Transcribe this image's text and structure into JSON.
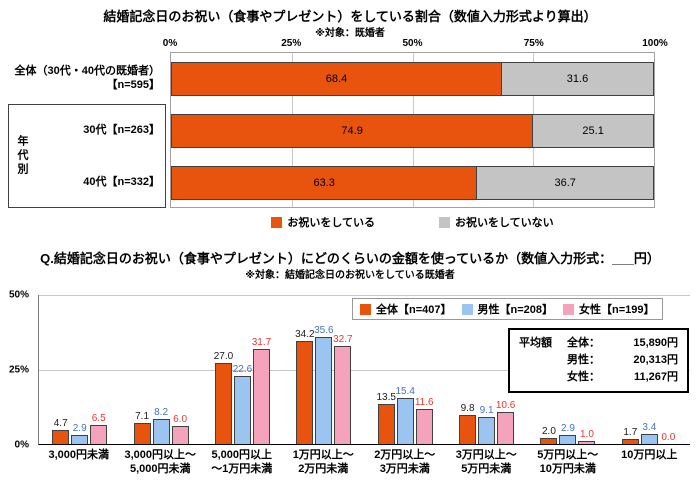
{
  "chart1": {
    "type": "bar",
    "title": "結婚記念日のお祝い（食事やプレゼント）をしている割合（数値入力形式より算出）",
    "subtitle": "※対象：既婚者",
    "x_ticks": [
      "0%",
      "25%",
      "50%",
      "75%",
      "100%"
    ],
    "xlim": [
      0,
      100
    ],
    "group_label": "年代別",
    "rows": [
      {
        "label_lines": [
          "全体（30代・40代の既婚者）",
          "【n=595】"
        ],
        "yes": "68.4",
        "no": "31.6"
      },
      {
        "label_lines": [
          "30代【n=263】"
        ],
        "yes": "74.9",
        "no": "25.1"
      },
      {
        "label_lines": [
          "40代【n=332】"
        ],
        "yes": "63.3",
        "no": "36.7"
      }
    ],
    "legend": [
      {
        "label": "お祝いをしている",
        "color": "#E8540E"
      },
      {
        "label": "お祝いをしていない",
        "color": "#C4C4C4"
      }
    ]
  },
  "chart2": {
    "type": "bar",
    "title": "Q.結婚記念日のお祝い（食事やプレゼント）にどのくらいの金額を使っているか（数値入力形式：___円）",
    "subtitle": "※対象：結婚記念日のお祝いをしている既婚者",
    "y_ticks": [
      "50%",
      "25%",
      "0%"
    ],
    "ylim": [
      0,
      50
    ],
    "categories": [
      {
        "lines": [
          "3,000円未満"
        ]
      },
      {
        "lines": [
          "3,000円以上～",
          "5,000円未満"
        ]
      },
      {
        "lines": [
          "5,000円以上",
          "～1万円未満"
        ]
      },
      {
        "lines": [
          "1万円以上～",
          "2万円未満"
        ]
      },
      {
        "lines": [
          "2万円以上～",
          "3万円未満"
        ]
      },
      {
        "lines": [
          "3万円以上～",
          "5万円未満"
        ]
      },
      {
        "lines": [
          "5万円以上～",
          "10万円未満"
        ]
      },
      {
        "lines": [
          "10万円以上"
        ]
      }
    ],
    "series": [
      {
        "name": "全体【n=407】",
        "color": "#E8540E",
        "label_color": "#1a1a1a",
        "values": [
          "4.7",
          "7.1",
          "27.0",
          "34.2",
          "13.5",
          "9.8",
          "2.0",
          "1.7"
        ]
      },
      {
        "name": "男性【n=208】",
        "color": "#9CC4F0",
        "label_color": "#4472C4",
        "values": [
          "2.9",
          "8.2",
          "22.6",
          "35.6",
          "15.4",
          "9.1",
          "2.9",
          "3.4"
        ]
      },
      {
        "name": "女性【n=199】",
        "color": "#F5A3BC",
        "label_color": "#E8382D",
        "values": [
          "6.5",
          "6.0",
          "31.7",
          "32.7",
          "11.6",
          "10.6",
          "1.0",
          "0.0"
        ]
      }
    ],
    "average": {
      "title": "平均額",
      "rows": [
        {
          "label": "全体：",
          "value": "15,890円"
        },
        {
          "label": "男性：",
          "value": "20,313円"
        },
        {
          "label": "女性：",
          "value": "11,267円"
        }
      ]
    }
  }
}
